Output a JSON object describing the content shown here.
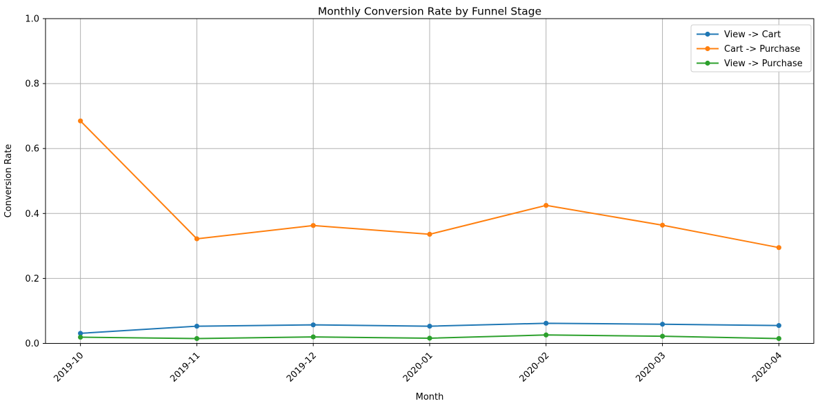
{
  "figure": {
    "background": "#ffffff"
  },
  "chart_data": {
    "type": "line",
    "title": "Monthly Conversion Rate by Funnel Stage",
    "xlabel": "Month",
    "ylabel": "Conversion Rate",
    "categories": [
      "2019-10",
      "2019-11",
      "2019-12",
      "2020-01",
      "2020-02",
      "2020-03",
      "2020-04"
    ],
    "series": [
      {
        "name": "View -> Cart",
        "color": "#1f77b4",
        "values": [
          0.031,
          0.053,
          0.057,
          0.053,
          0.062,
          0.059,
          0.055
        ]
      },
      {
        "name": "Cart -> Purchase",
        "color": "#ff7f0e",
        "values": [
          0.685,
          0.322,
          0.363,
          0.336,
          0.425,
          0.364,
          0.295
        ]
      },
      {
        "name": "View -> Purchase",
        "color": "#2ca02c",
        "values": [
          0.019,
          0.015,
          0.02,
          0.016,
          0.026,
          0.022,
          0.015
        ]
      }
    ],
    "ylim": [
      0.0,
      1.0
    ],
    "yticks": [
      0.0,
      0.2,
      0.4,
      0.6,
      0.8,
      1.0
    ],
    "ytick_labels": [
      "0.0",
      "0.2",
      "0.4",
      "0.6",
      "0.8",
      "1.0"
    ],
    "xtick_rotation_deg": 45,
    "grid": true,
    "grid_color": "#b0b0b0",
    "axis_color": "#000000",
    "legend_position": "upper right",
    "marker": "circle"
  }
}
